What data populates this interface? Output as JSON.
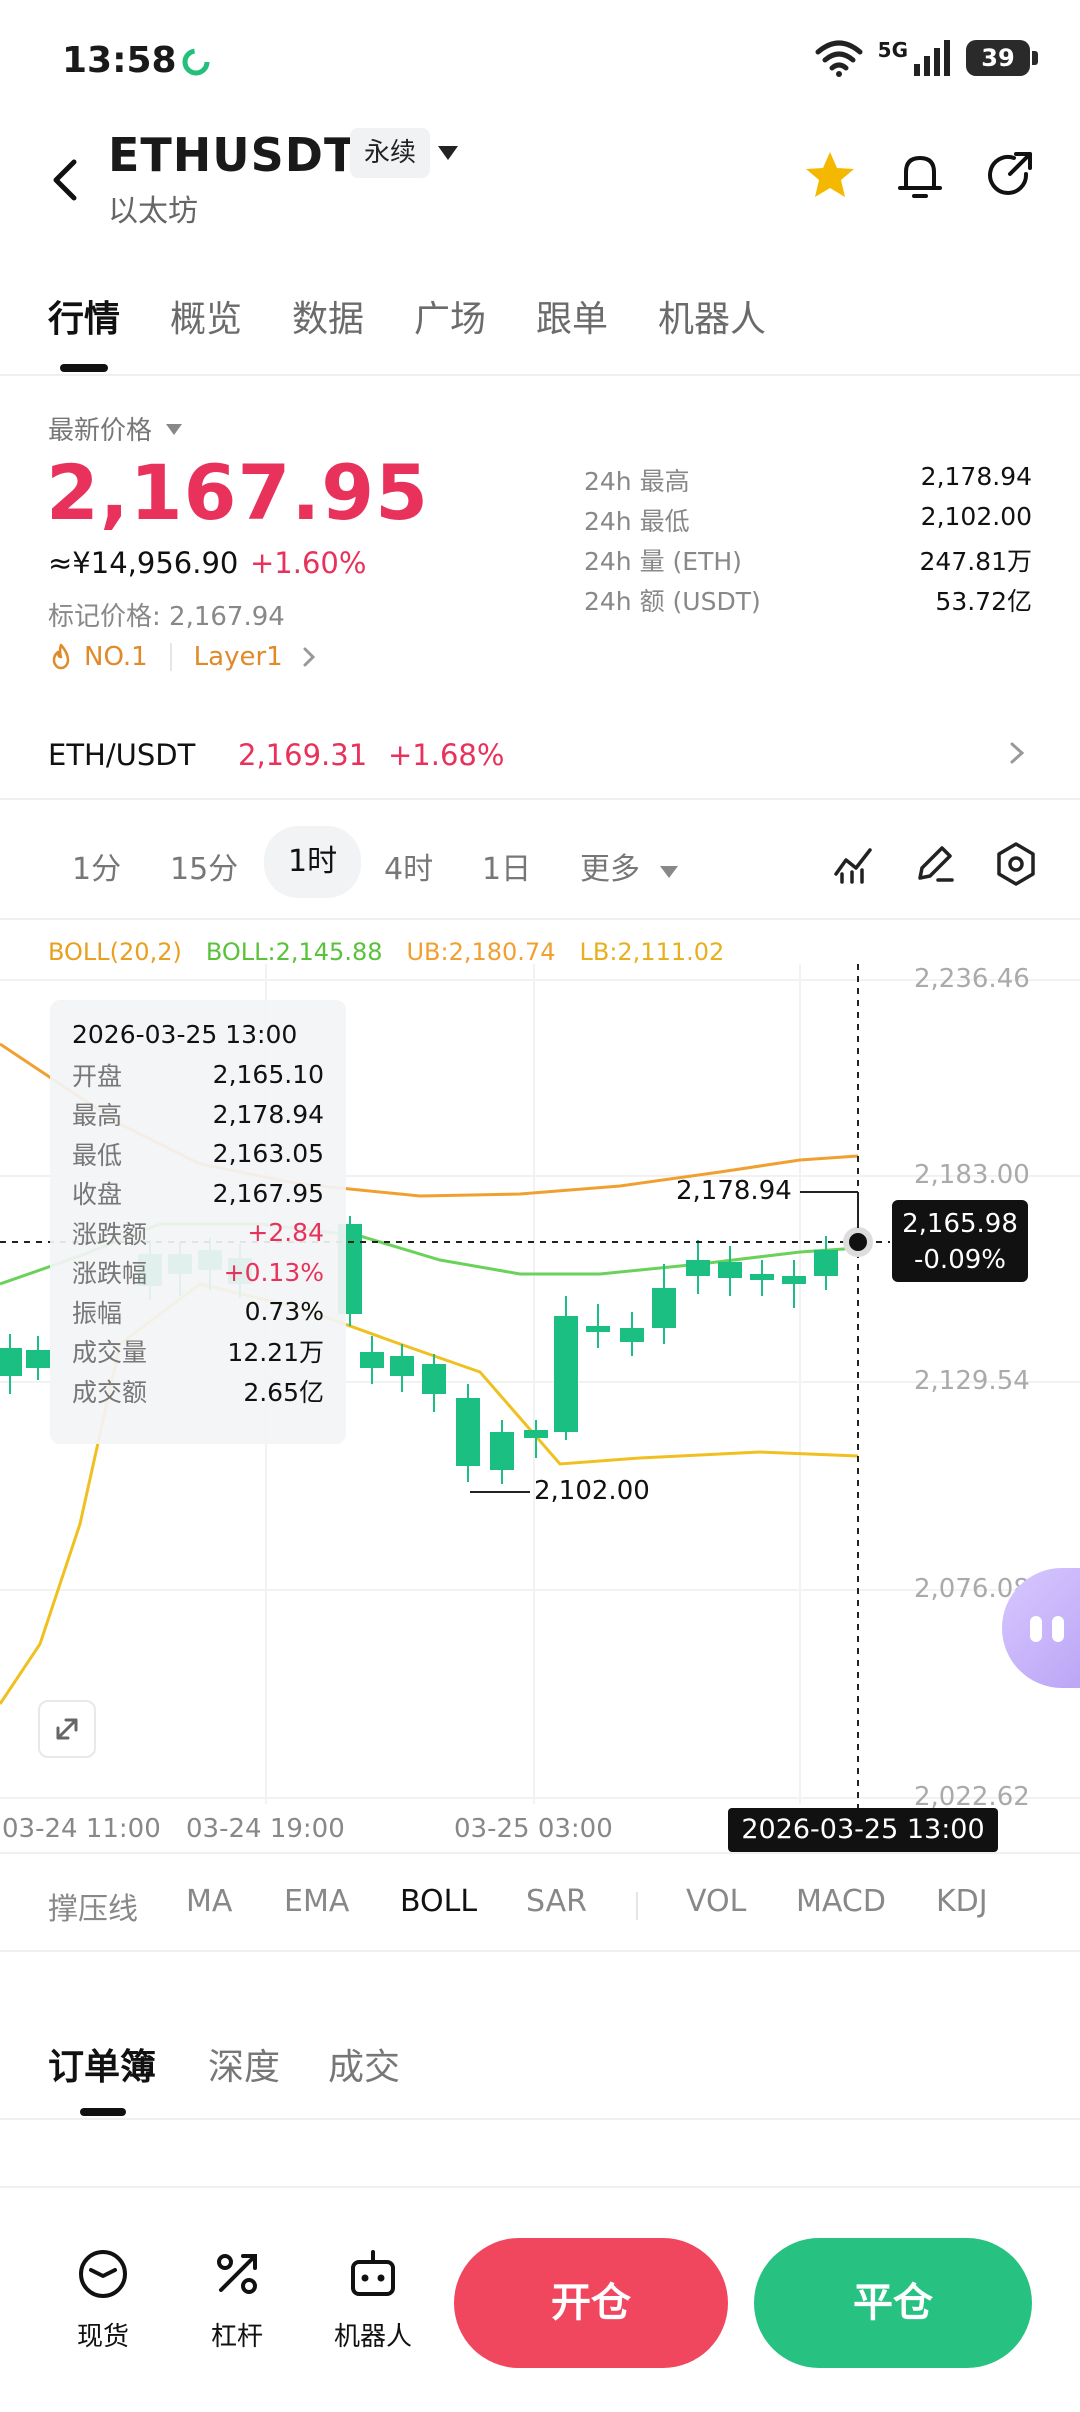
{
  "status_bar": {
    "time": "13:58",
    "battery": "39",
    "network": "5G"
  },
  "header": {
    "symbol": "ETHUSDT",
    "subtitle": "以太坊",
    "contract_type": "永续"
  },
  "main_tabs": [
    "行情",
    "概览",
    "数据",
    "广场",
    "跟单",
    "机器人"
  ],
  "price": {
    "label": "最新价格",
    "last": "2,167.95",
    "cny": "≈¥14,956.90",
    "change_pct": "+1.60%",
    "mark_price": "标记价格: 2,167.94",
    "tags": [
      "NO.1",
      "Layer1"
    ]
  },
  "stats_24h": [
    {
      "label": "24h  最高",
      "value": "2,178.94"
    },
    {
      "label": "24h  最低",
      "value": "2,102.00"
    },
    {
      "label": "24h  量 (ETH)",
      "value": "247.81万"
    },
    {
      "label": "24h  额 (USDT)",
      "value": "53.72亿"
    }
  ],
  "spot": {
    "pair": "ETH/USDT",
    "price": "2,169.31",
    "change": "+1.68%"
  },
  "intervals": [
    "1分",
    "15分",
    "1时",
    "4时",
    "1日",
    "更多"
  ],
  "active_interval": "1时",
  "boll": {
    "name": "BOLL(20,2)",
    "boll": "BOLL:2,145.88",
    "ub": "UB:2,180.74",
    "lb": "LB:2,111.02"
  },
  "tooltip": {
    "date": "2026-03-25 13:00",
    "rows": [
      {
        "label": "开盘",
        "value": "2,165.10"
      },
      {
        "label": "最高",
        "value": "2,178.94"
      },
      {
        "label": "最低",
        "value": "2,163.05"
      },
      {
        "label": "收盘",
        "value": "2,167.95"
      },
      {
        "label": "涨跌额",
        "value": "+2.84"
      },
      {
        "label": "涨跌幅",
        "value": "+0.13%"
      },
      {
        "label": "振幅",
        "value": "0.73%"
      },
      {
        "label": "成交量",
        "value": "12.21万"
      },
      {
        "label": "成交额",
        "value": "2.65亿"
      }
    ]
  },
  "chart_data": {
    "type": "candlestick",
    "y_ticks": [
      "2,236.46",
      "2,183.00",
      "2,129.54",
      "2,076.08",
      "2,022.62"
    ],
    "x_ticks": [
      "03-24 11:00",
      "03-24 19:00",
      "03-25 03:00"
    ],
    "crosshair_price": "2,165.98",
    "crosshair_change": "-0.09%",
    "crosshair_time": "2026-03-25 13:00",
    "high_label": "2,178.94",
    "low_label": "2,102.00",
    "colors": {
      "up": "#f0375c",
      "down": "#1cbf82",
      "ub": "#f0a030",
      "lb": "#f0c020",
      "mid": "#6ad25a"
    }
  },
  "indicators": [
    "撑压线",
    "MA",
    "EMA",
    "BOLL",
    "SAR",
    "VOL",
    "MACD",
    "KDJ"
  ],
  "active_indicator": "BOLL",
  "order_tabs": [
    "订单簿",
    "深度",
    "成交"
  ],
  "bottom_nav": [
    {
      "label": "现货",
      "icon": "spot-icon"
    },
    {
      "label": "杠杆",
      "icon": "leverage-icon"
    },
    {
      "label": "机器人",
      "icon": "robot-icon"
    }
  ],
  "actions": {
    "open": "开仓",
    "close": "平仓"
  }
}
